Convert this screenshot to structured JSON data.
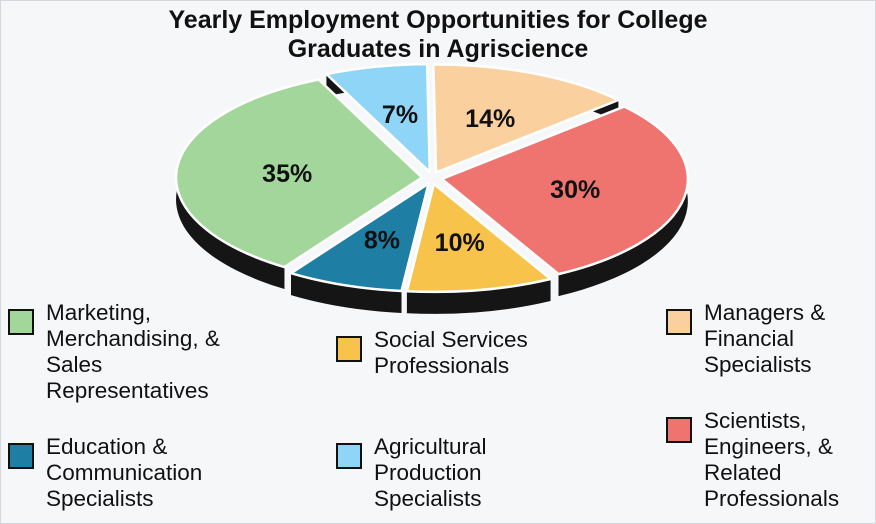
{
  "chart_data": {
    "type": "pie",
    "title": "Yearly Employment Opportunities for College Graduates in Agriscience",
    "title_lines": [
      "Yearly Employment Opportunities for College",
      "Graduates in Agriscience"
    ],
    "slices": [
      {
        "name": "Marketing, Merchandising, & Sales Representatives",
        "legend_text": "Marketing,\nMerchandising, &\nSales\nRepresentatives",
        "value": 35,
        "label": "35%",
        "color": "#a3d69a"
      },
      {
        "name": "Agricultural Production Specialists",
        "legend_text": "Agricultural\nProduction\nSpecialists",
        "value": 7,
        "label": "7%",
        "color": "#8fd5f7"
      },
      {
        "name": "Managers & Financial Specialists",
        "legend_text": "Managers &\nFinancial\nSpecialists",
        "value": 14,
        "label": "14%",
        "color": "#fbd09f"
      },
      {
        "name": "Scientists, Engineers, & Related Professionals",
        "legend_text": "Scientists,\nEngineers, &\nRelated\nProfessionals",
        "value": 30,
        "label": "30%",
        "color": "#ef7470"
      },
      {
        "name": "Social Services Professionals",
        "legend_text": "Social Services\nProfessionals",
        "value": 10,
        "label": "10%",
        "color": "#f7c34a"
      },
      {
        "name": "Education & Communication Specialists",
        "legend_text": "Education &\nCommunication\nSpecialists",
        "value": 8,
        "label": "8%",
        "color": "#1e7ea3"
      }
    ],
    "style": "3d-exploded",
    "legend_position": "bottom"
  }
}
